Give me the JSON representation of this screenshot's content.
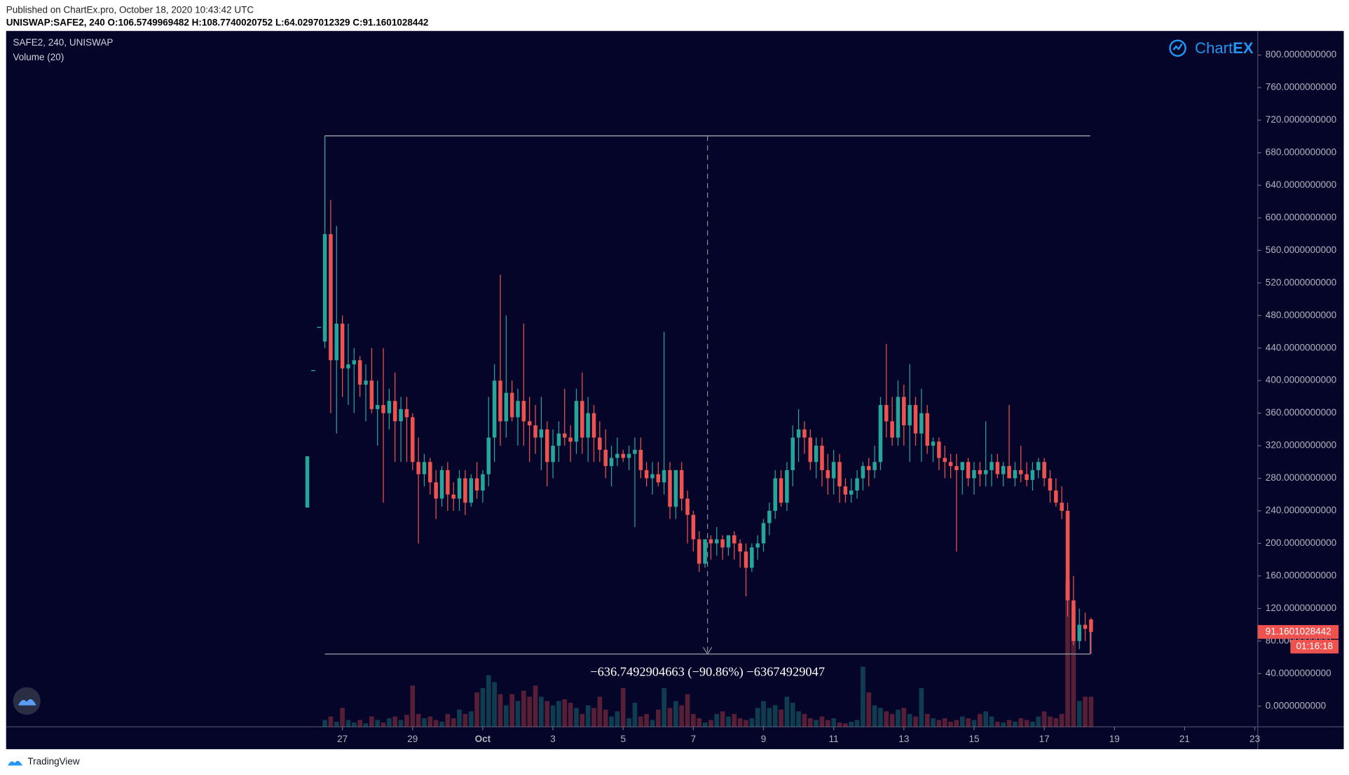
{
  "header": {
    "published": "Published on ChartEx.pro, October 18, 2020 10:43:42 UTC",
    "ohlc_line": "UNISWAP:SAFE2,  240  O:106.5749969482  H:108.7740020752  L:64.0297012329  C:91.1601028442",
    "logo_a": "Chart",
    "logo_b": "EX",
    "footer": "TradingView"
  },
  "chart_data": {
    "type": "candlestick",
    "title": "SAFE2, 240, UNISWAP",
    "subtitle": "Volume (20)",
    "countdown": "01:16:18",
    "up_color": "#26a69a",
    "down_color": "#ef5350",
    "xlim": [
      -51.5,
      162.5
    ],
    "xticks": [
      {
        "value": 6,
        "label": "27"
      },
      {
        "value": 18,
        "label": "29"
      },
      {
        "value": 30,
        "label": "Oct"
      },
      {
        "value": 42,
        "label": "3"
      },
      {
        "value": 54,
        "label": "5"
      },
      {
        "value": 66,
        "label": "7"
      },
      {
        "value": 78,
        "label": "9"
      },
      {
        "value": 90,
        "label": "11"
      },
      {
        "value": 102,
        "label": "13"
      },
      {
        "value": 114,
        "label": "15"
      },
      {
        "value": 126,
        "label": "17"
      },
      {
        "value": 138,
        "label": "19"
      },
      {
        "value": 150,
        "label": "21"
      },
      {
        "value": 162,
        "label": "23"
      }
    ],
    "ylim": [
      -25.4,
      829.6
    ],
    "yticks": [
      {
        "value": 0,
        "label": "0.0000000000"
      },
      {
        "value": 40,
        "label": "40.0000000000"
      },
      {
        "value": 80,
        "label": "80.0000000000"
      },
      {
        "value": 120,
        "label": "120.0000000000"
      },
      {
        "value": 160,
        "label": "160.0000000000"
      },
      {
        "value": 200,
        "label": "200.0000000000"
      },
      {
        "value": 240,
        "label": "240.0000000000"
      },
      {
        "value": 280,
        "label": "280.0000000000"
      },
      {
        "value": 320,
        "label": "320.0000000000"
      },
      {
        "value": 360,
        "label": "360.0000000000"
      },
      {
        "value": 400,
        "label": "400.0000000000"
      },
      {
        "value": 440,
        "label": "440.0000000000"
      },
      {
        "value": 480,
        "label": "480.0000000000"
      },
      {
        "value": 520,
        "label": "520.0000000000"
      },
      {
        "value": 560,
        "label": "560.0000000000"
      },
      {
        "value": 600,
        "label": "600.0000000000"
      },
      {
        "value": 640,
        "label": "640.0000000000"
      },
      {
        "value": 680,
        "label": "680.0000000000"
      },
      {
        "value": 720,
        "label": "720.0000000000"
      },
      {
        "value": 760,
        "label": "760.0000000000"
      },
      {
        "value": 800,
        "label": "800.0000000000"
      }
    ],
    "grid": false,
    "measure": {
      "from": 700.78,
      "to": 64.0297012329,
      "label": "−636.7492904663 (−90.86%) −63674929047"
    },
    "ohlc": [
      [
        244,
        307,
        244,
        307
      ],
      [
        413,
        413,
        413,
        413
      ],
      [
        466,
        466,
        466,
        466
      ],
      [
        448,
        700,
        440,
        580
      ],
      [
        580,
        622,
        360,
        425
      ],
      [
        425,
        590,
        335,
        470
      ],
      [
        470,
        480,
        380,
        415
      ],
      [
        415,
        470,
        370,
        420
      ],
      [
        420,
        440,
        360,
        425
      ],
      [
        425,
        430,
        380,
        395
      ],
      [
        395,
        420,
        350,
        400
      ],
      [
        400,
        440,
        360,
        365
      ],
      [
        365,
        400,
        320,
        370
      ],
      [
        370,
        440,
        250,
        360
      ],
      [
        360,
        390,
        340,
        375
      ],
      [
        375,
        410,
        300,
        350
      ],
      [
        350,
        380,
        300,
        365
      ],
      [
        365,
        380,
        300,
        355
      ],
      [
        355,
        360,
        290,
        300
      ],
      [
        300,
        330,
        200,
        285
      ],
      [
        285,
        310,
        270,
        300
      ],
      [
        300,
        305,
        260,
        275
      ],
      [
        275,
        290,
        230,
        255
      ],
      [
        255,
        295,
        245,
        290
      ],
      [
        290,
        300,
        240,
        260
      ],
      [
        260,
        275,
        240,
        255
      ],
      [
        255,
        290,
        240,
        280
      ],
      [
        280,
        290,
        235,
        250
      ],
      [
        250,
        285,
        245,
        280
      ],
      [
        280,
        300,
        255,
        265
      ],
      [
        265,
        290,
        250,
        285
      ],
      [
        285,
        380,
        270,
        330
      ],
      [
        330,
        420,
        300,
        400
      ],
      [
        400,
        530,
        320,
        350
      ],
      [
        350,
        480,
        330,
        385
      ],
      [
        385,
        400,
        350,
        355
      ],
      [
        355,
        390,
        320,
        375
      ],
      [
        375,
        470,
        320,
        350
      ],
      [
        350,
        380,
        300,
        345
      ],
      [
        345,
        370,
        310,
        330
      ],
      [
        330,
        380,
        290,
        340
      ],
      [
        340,
        350,
        270,
        300
      ],
      [
        300,
        340,
        280,
        320
      ],
      [
        320,
        350,
        300,
        335
      ],
      [
        335,
        390,
        320,
        330
      ],
      [
        330,
        345,
        300,
        325
      ],
      [
        325,
        390,
        310,
        375
      ],
      [
        375,
        410,
        310,
        330
      ],
      [
        330,
        380,
        300,
        360
      ],
      [
        360,
        370,
        300,
        330
      ],
      [
        330,
        350,
        300,
        315
      ],
      [
        315,
        340,
        280,
        295
      ],
      [
        295,
        320,
        270,
        305
      ],
      [
        305,
        330,
        295,
        310
      ],
      [
        310,
        315,
        300,
        305
      ],
      [
        305,
        320,
        290,
        310
      ],
      [
        310,
        330,
        220,
        315
      ],
      [
        315,
        330,
        280,
        290
      ],
      [
        290,
        300,
        270,
        280
      ],
      [
        280,
        300,
        260,
        285
      ],
      [
        285,
        300,
        270,
        275
      ],
      [
        275,
        460,
        260,
        290
      ],
      [
        290,
        300,
        230,
        245
      ],
      [
        245,
        290,
        230,
        290
      ],
      [
        290,
        300,
        240,
        255
      ],
      [
        255,
        265,
        200,
        235
      ],
      [
        235,
        240,
        190,
        205
      ],
      [
        205,
        215,
        165,
        175
      ],
      [
        175,
        205,
        170,
        205
      ],
      [
        205,
        210,
        180,
        200
      ],
      [
        200,
        220,
        185,
        205
      ],
      [
        205,
        210,
        180,
        195
      ],
      [
        195,
        210,
        185,
        210
      ],
      [
        210,
        215,
        180,
        200
      ],
      [
        200,
        205,
        170,
        190
      ],
      [
        190,
        200,
        135,
        170
      ],
      [
        170,
        200,
        165,
        195
      ],
      [
        195,
        210,
        180,
        200
      ],
      [
        200,
        230,
        190,
        225
      ],
      [
        225,
        250,
        210,
        240
      ],
      [
        240,
        290,
        230,
        280
      ],
      [
        280,
        290,
        245,
        250
      ],
      [
        250,
        300,
        240,
        290
      ],
      [
        290,
        345,
        270,
        330
      ],
      [
        330,
        365,
        300,
        340
      ],
      [
        340,
        350,
        310,
        330
      ],
      [
        330,
        340,
        290,
        300
      ],
      [
        300,
        330,
        280,
        320
      ],
      [
        320,
        330,
        270,
        290
      ],
      [
        290,
        310,
        260,
        280
      ],
      [
        280,
        315,
        260,
        300
      ],
      [
        300,
        310,
        250,
        270
      ],
      [
        270,
        280,
        250,
        260
      ],
      [
        260,
        280,
        250,
        265
      ],
      [
        265,
        290,
        255,
        280
      ],
      [
        280,
        300,
        265,
        295
      ],
      [
        295,
        305,
        270,
        290
      ],
      [
        290,
        320,
        280,
        300
      ],
      [
        300,
        380,
        290,
        370
      ],
      [
        370,
        445,
        330,
        350
      ],
      [
        350,
        380,
        320,
        330
      ],
      [
        330,
        400,
        320,
        380
      ],
      [
        380,
        395,
        320,
        345
      ],
      [
        345,
        420,
        300,
        370
      ],
      [
        370,
        380,
        320,
        335
      ],
      [
        335,
        390,
        300,
        360
      ],
      [
        360,
        370,
        310,
        320
      ],
      [
        320,
        330,
        300,
        325
      ],
      [
        325,
        330,
        290,
        305
      ],
      [
        305,
        320,
        280,
        300
      ],
      [
        300,
        310,
        280,
        295
      ],
      [
        295,
        310,
        190,
        290
      ],
      [
        290,
        300,
        260,
        300
      ],
      [
        300,
        305,
        270,
        280
      ],
      [
        280,
        300,
        260,
        290
      ],
      [
        290,
        300,
        270,
        285
      ],
      [
        285,
        350,
        270,
        290
      ],
      [
        290,
        310,
        270,
        300
      ],
      [
        300,
        310,
        280,
        285
      ],
      [
        285,
        300,
        270,
        295
      ],
      [
        295,
        370,
        280,
        280
      ],
      [
        280,
        300,
        270,
        290
      ],
      [
        290,
        320,
        275,
        285
      ],
      [
        285,
        300,
        270,
        278
      ],
      [
        278,
        300,
        265,
        290
      ],
      [
        290,
        305,
        280,
        300
      ],
      [
        300,
        305,
        270,
        280
      ],
      [
        280,
        290,
        250,
        265
      ],
      [
        265,
        280,
        245,
        250
      ],
      [
        250,
        270,
        230,
        240
      ],
      [
        240,
        250,
        110,
        130
      ],
      [
        130,
        160,
        75,
        80
      ],
      [
        80,
        120,
        70,
        100
      ],
      [
        100,
        115,
        80,
        95
      ],
      [
        106.5749969482,
        108.7740020752,
        64.0297012329,
        91.1601028442
      ]
    ],
    "volume": [
      0,
      0,
      0,
      8,
      12,
      6,
      22,
      8,
      5,
      8,
      4,
      12,
      8,
      5,
      10,
      12,
      8,
      14,
      48,
      15,
      10,
      12,
      8,
      6,
      15,
      10,
      20,
      15,
      18,
      40,
      45,
      60,
      52,
      38,
      25,
      38,
      30,
      42,
      35,
      48,
      35,
      30,
      25,
      30,
      32,
      28,
      22,
      15,
      25,
      22,
      35,
      20,
      12,
      18,
      45,
      10,
      28,
      12,
      15,
      8,
      20,
      45,
      22,
      30,
      25,
      38,
      15,
      10,
      5,
      8,
      15,
      18,
      12,
      15,
      10,
      8,
      10,
      22,
      30,
      22,
      25,
      20,
      35,
      28,
      18,
      15,
      10,
      8,
      12,
      8,
      10,
      5,
      4,
      6,
      8,
      70,
      40,
      25,
      22,
      18,
      15,
      20,
      22,
      15,
      12,
      45,
      15,
      10,
      8,
      10,
      6,
      8,
      12,
      10,
      8,
      15,
      18,
      12,
      6,
      5,
      8,
      6,
      10,
      8,
      6,
      12,
      18,
      12,
      10,
      15,
      170,
      140,
      30,
      35,
      35
    ]
  }
}
